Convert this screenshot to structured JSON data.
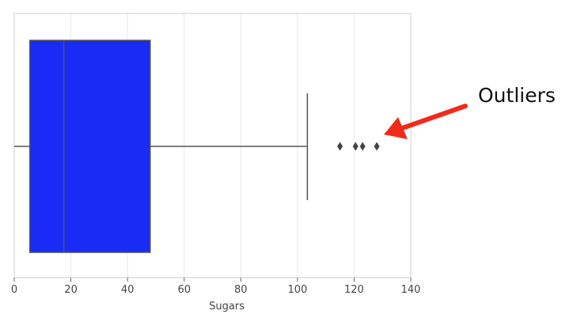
{
  "chart_data": {
    "type": "box",
    "orientation": "horizontal",
    "xlabel": "Sugars",
    "ylabel": "",
    "xlim": [
      0,
      140
    ],
    "xticks": [
      0,
      20,
      40,
      60,
      80,
      100,
      120,
      140
    ],
    "xtick_labels": [
      "0",
      "20",
      "40",
      "60",
      "80",
      "100",
      "120",
      "140"
    ],
    "grid": true,
    "box": {
      "min": 0,
      "q1": 5.5,
      "median": 17.5,
      "q3": 48,
      "max": 103.5,
      "fill_color": "#1a2bf5",
      "line_color": "#555555"
    },
    "outliers": [
      115,
      120.5,
      123,
      128
    ],
    "annotation": {
      "text": "Outliers",
      "color": "#111111",
      "arrow_color": "#f22a1a"
    }
  }
}
